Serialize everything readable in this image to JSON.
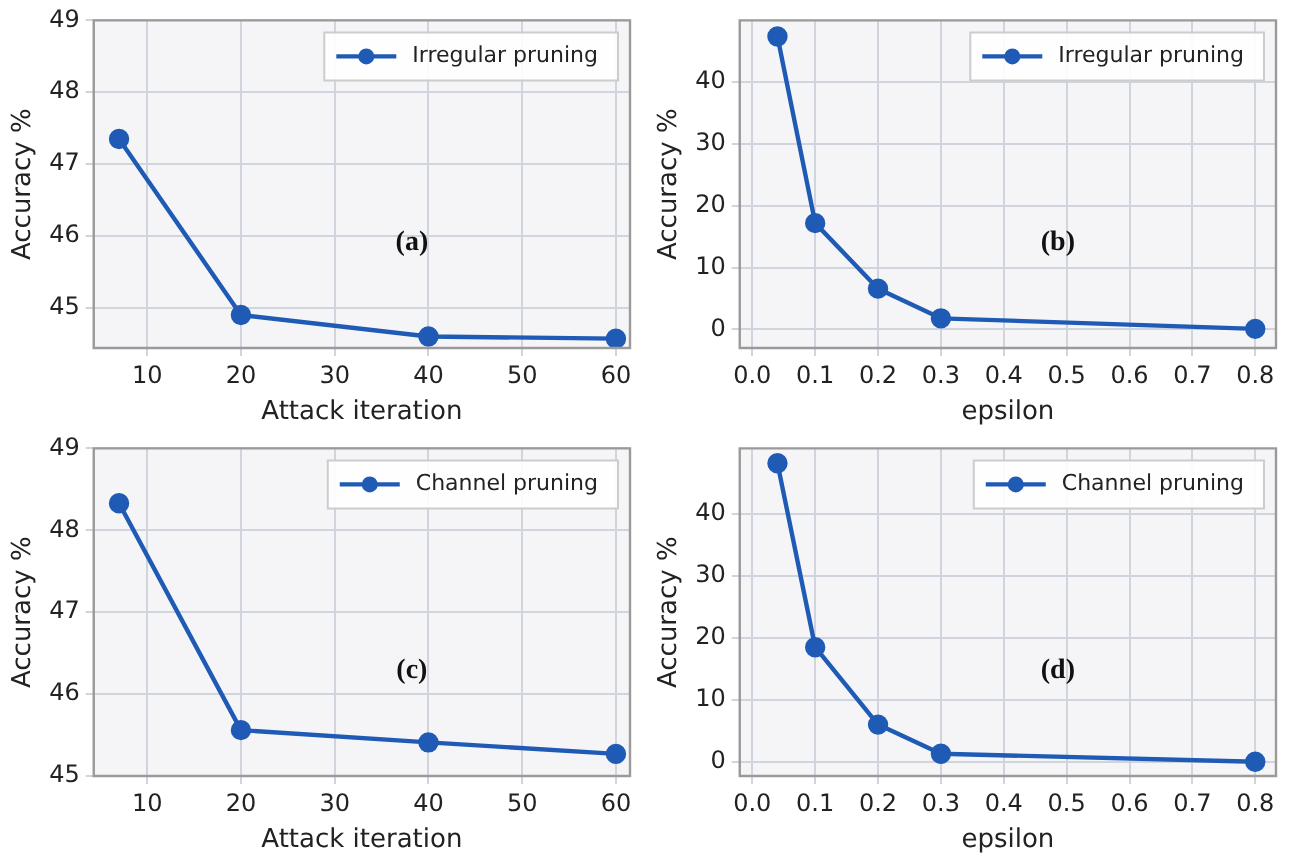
{
  "chart_data": [
    {
      "type": "line",
      "xlabel": "Attack iteration",
      "ylabel": "Accuracy %",
      "annotations": [
        "(a)"
      ],
      "x": [
        7,
        20,
        40,
        60
      ],
      "series": [
        {
          "name": "Irregular pruning",
          "color": "#1f5bb5",
          "values": [
            47.35,
            44.9,
            44.6,
            44.57
          ]
        }
      ],
      "xlim": [
        4.3,
        61.5
      ],
      "xticks": [
        10,
        20,
        30,
        40,
        50,
        60
      ],
      "ylim": [
        44.44,
        49
      ],
      "yticks": [
        45,
        46,
        47,
        48,
        49
      ],
      "grid": true,
      "legend": "top right",
      "marker": "circle"
    },
    {
      "type": "line",
      "xlabel": "epsilon",
      "ylabel": "Accuracy %",
      "annotations": [
        "(b)"
      ],
      "x": [
        0.04,
        0.1,
        0.2,
        0.3,
        0.8
      ],
      "series": [
        {
          "name": "Irregular pruning",
          "color": "#1f5bb5",
          "values": [
            47.4,
            17.2,
            6.6,
            1.8,
            0.1
          ]
        }
      ],
      "xlim": [
        -0.02,
        0.833
      ],
      "xticks": [
        {
          "value": 0,
          "label": "0.0"
        },
        0.1,
        0.2,
        0.3,
        0.4,
        0.5,
        0.6,
        0.7,
        0.8
      ],
      "ylim": [
        -3,
        50
      ],
      "yticks": [
        0,
        10,
        20,
        30,
        40
      ],
      "grid": true,
      "legend": "top right",
      "marker": "circle"
    },
    {
      "type": "line",
      "xlabel": "Attack iteration",
      "ylabel": "Accuracy %",
      "annotations": [
        "(c)"
      ],
      "x": [
        7,
        20,
        40,
        60
      ],
      "series": [
        {
          "name": "Channel pruning",
          "color": "#1f5bb5",
          "values": [
            48.33,
            45.56,
            45.41,
            45.27
          ]
        }
      ],
      "xlim": [
        4.3,
        61.5
      ],
      "xticks": [
        10,
        20,
        30,
        40,
        50,
        60
      ],
      "ylim": [
        45,
        49
      ],
      "yticks": [
        45,
        46,
        47,
        48,
        49
      ],
      "grid": true,
      "legend": "top right",
      "marker": "circle"
    },
    {
      "type": "line",
      "xlabel": "epsilon",
      "ylabel": "Accuracy %",
      "annotations": [
        "(d)"
      ],
      "x": [
        0.04,
        0.1,
        0.2,
        0.3,
        0.8
      ],
      "series": [
        {
          "name": "Channel pruning",
          "color": "#1f5bb5",
          "values": [
            48.2,
            18.5,
            6.0,
            1.3,
            0.0
          ]
        }
      ],
      "xlim": [
        -0.02,
        0.833
      ],
      "xticks": [
        {
          "value": 0,
          "label": "0.0"
        },
        0.1,
        0.2,
        0.3,
        0.4,
        0.5,
        0.6,
        0.7,
        0.8
      ],
      "ylim": [
        -2.3,
        50.6
      ],
      "yticks": [
        0,
        10,
        20,
        30,
        40
      ],
      "grid": true,
      "legend": "top right",
      "marker": "circle"
    }
  ]
}
